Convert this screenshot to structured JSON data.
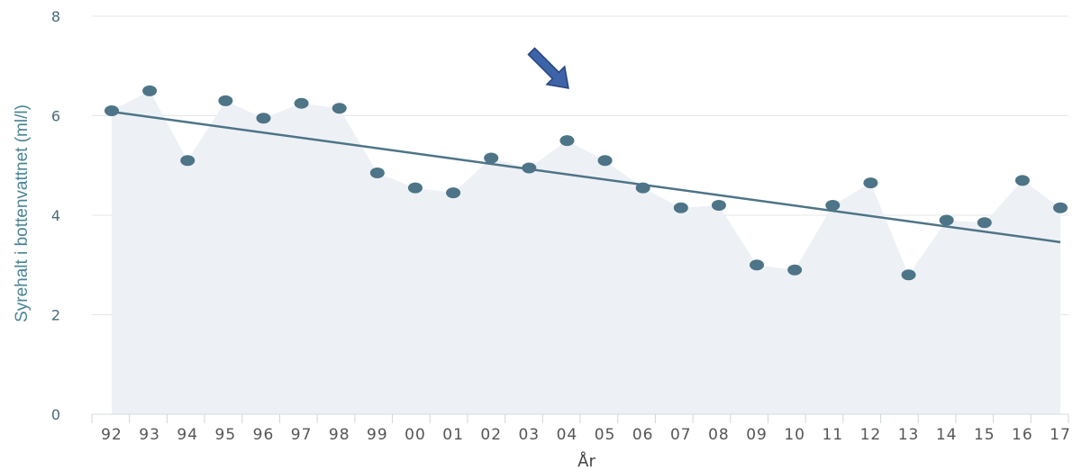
{
  "chart_data": {
    "type": "line",
    "xlabel": "År",
    "ylabel": "Syrehalt i bottenvattnet (ml/l)",
    "ylim": [
      0,
      8
    ],
    "yticks": [
      "0",
      "2",
      "4",
      "6",
      "8"
    ],
    "grid": true,
    "categories": [
      "92",
      "93",
      "94",
      "95",
      "96",
      "97",
      "98",
      "99",
      "00",
      "01",
      "02",
      "03",
      "04",
      "05",
      "06",
      "07",
      "08",
      "09",
      "10",
      "11",
      "12",
      "13",
      "14",
      "15",
      "16",
      "17"
    ],
    "series": [
      {
        "values": [
          6.1,
          6.5,
          5.1,
          6.3,
          5.95,
          6.25,
          6.15,
          4.85,
          4.55,
          4.45,
          5.15,
          4.95,
          5.5,
          5.1,
          4.55,
          4.15,
          4.2,
          3.0,
          2.9,
          4.2,
          4.65,
          2.8,
          3.9,
          3.85,
          4.7,
          4.15
        ],
        "color": "#4d7487",
        "fill": "#edf1f5"
      }
    ],
    "trendline": {
      "start": 6.08,
      "end": 3.46,
      "color": "#4d7487"
    },
    "annotation": {
      "type": "arrow",
      "at_category": "04",
      "direction": "down-right",
      "color": "#3d63a8"
    }
  }
}
